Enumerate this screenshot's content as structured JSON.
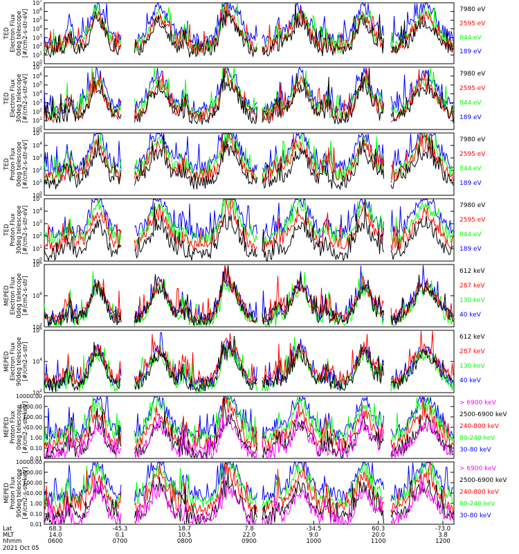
{
  "chart_data": [
    {
      "type": "line",
      "ylabel": [
        "TED",
        "Electron Flux",
        "0deg telescope",
        "[#/cm2-s-str-eV]"
      ],
      "yscale": "log",
      "ylim": [
        1,
        10000000
      ],
      "yticks": [
        "10^0",
        "10^1",
        "10^2",
        "10^3",
        "10^4",
        "10^5",
        "10^6",
        "10^7"
      ],
      "series": [
        {
          "name": "7980 eV",
          "color": "#000000",
          "level": 0.2
        },
        {
          "name": "2595 eV",
          "color": "#ff0000",
          "level": 0.25
        },
        {
          "name": "844 eV",
          "color": "#00ff00",
          "level": 0.28
        },
        {
          "name": "189 eV",
          "color": "#0000ff",
          "level": 0.38
        }
      ]
    },
    {
      "type": "line",
      "ylabel": [
        "TED",
        "Electron Flux",
        "30deg telescope",
        "[#/cm2-s-str-eV]"
      ],
      "yscale": "log",
      "ylim": [
        1,
        10000000
      ],
      "yticks": [
        "10^0",
        "10^1",
        "10^2",
        "10^3",
        "10^4",
        "10^5",
        "10^6",
        "10^7"
      ],
      "series": [
        {
          "name": "7980 eV",
          "color": "#000000",
          "level": 0.18
        },
        {
          "name": "2595 eV",
          "color": "#ff0000",
          "level": 0.22
        },
        {
          "name": "844 eV",
          "color": "#00ff00",
          "level": 0.26
        },
        {
          "name": "189 eV",
          "color": "#0000ff",
          "level": 0.33
        }
      ]
    },
    {
      "type": "line",
      "ylabel": [
        "TED",
        "Proton Flux",
        "0deg telescope",
        "[#/cm2-s-str-eV]"
      ],
      "yscale": "log",
      "ylim": [
        1,
        100000
      ],
      "yticks": [
        "10^0",
        "10^1",
        "10^2",
        "10^3",
        "10^4",
        "10^5"
      ],
      "series": [
        {
          "name": "7980 eV",
          "color": "#000000",
          "level": 0.2
        },
        {
          "name": "2595 eV",
          "color": "#ff0000",
          "level": 0.3
        },
        {
          "name": "844 eV",
          "color": "#00ff00",
          "level": 0.35
        },
        {
          "name": "189 eV",
          "color": "#0000ff",
          "level": 0.45
        }
      ]
    },
    {
      "type": "line",
      "ylabel": [
        "TED",
        "Proton Flux",
        "30deg telescope",
        "[#/cm2-s-str-eV]"
      ],
      "yscale": "log",
      "ylim": [
        1,
        100000
      ],
      "yticks": [
        "10^0",
        "10^1",
        "10^2",
        "10^3",
        "10^4",
        "10^5"
      ],
      "series": [
        {
          "name": "7980 eV",
          "color": "#000000",
          "level": 0.1
        },
        {
          "name": "2595 eV",
          "color": "#ff0000",
          "level": 0.25
        },
        {
          "name": "844 eV",
          "color": "#00ff00",
          "level": 0.35
        },
        {
          "name": "189 eV",
          "color": "#0000ff",
          "level": 0.45
        }
      ]
    },
    {
      "type": "line",
      "ylabel": [
        "MEPED",
        "Electron Flux",
        "0deg telescope",
        "[#/cm2-s-str]"
      ],
      "yscale": "log",
      "ylim": [
        10,
        10000000
      ],
      "yticks": [
        "10^2",
        "10^4",
        "10^6"
      ],
      "series": [
        {
          "name": "612 keV",
          "color": "#000000",
          "level": 0.12
        },
        {
          "name": "287 keV",
          "color": "#ff0000",
          "level": 0.15
        },
        {
          "name": "130 keV",
          "color": "#00ff00",
          "level": 0.08
        },
        {
          "name": "40 keV",
          "color": "#0000ff",
          "level": 0.14
        }
      ]
    },
    {
      "type": "line",
      "ylabel": [
        "MEPED",
        "Electron Flux",
        "90deg telescope",
        "[#/cm2-s-str]"
      ],
      "yscale": "log",
      "ylim": [
        10,
        10000000
      ],
      "yticks": [
        "10^2",
        "10^4",
        "10^6"
      ],
      "series": [
        {
          "name": "612 keV",
          "color": "#000000",
          "level": 0.12
        },
        {
          "name": "287 keV",
          "color": "#ff0000",
          "level": 0.2
        },
        {
          "name": "130 keV",
          "color": "#00ff00",
          "level": 0.1
        },
        {
          "name": "40 keV",
          "color": "#0000ff",
          "level": 0.15
        }
      ]
    },
    {
      "type": "line",
      "ylabel": [
        "MEPED",
        "Proton Flux",
        "0deg telescope",
        "[#/cm2-s-str-keV]"
      ],
      "yscale": "log",
      "ylim": [
        0.01,
        10000
      ],
      "yticks": [
        "0.01",
        "0.10",
        "1.00",
        "10.00",
        "100.00",
        "1000.00",
        "10000.00"
      ],
      "series": [
        {
          "name": "> 6900 keV",
          "color": "#ff00ff",
          "level": 0.05
        },
        {
          "name": "2500-6900 keV",
          "color": "#000000",
          "level": 0.08
        },
        {
          "name": "240-800 keV",
          "color": "#ff0000",
          "level": 0.22
        },
        {
          "name": "80-240 keV",
          "color": "#00ff00",
          "level": 0.33
        },
        {
          "name": "30-80 keV",
          "color": "#0000ff",
          "level": 0.4
        }
      ]
    },
    {
      "type": "line",
      "ylabel": [
        "MEPED",
        "Proton Flux",
        "90deg telescope",
        "[#/cm2-s-str-keV]"
      ],
      "yscale": "log",
      "ylim": [
        0.01,
        10000
      ],
      "yticks": [
        "0.01",
        "0.10",
        "1.00",
        "10.00",
        "100.00",
        "1000.00",
        "10000.00"
      ],
      "series": [
        {
          "name": "> 6900 keV",
          "color": "#ff00ff",
          "level": 0.05
        },
        {
          "name": "2500-6900 keV",
          "color": "#000000",
          "level": 0.1
        },
        {
          "name": "240-800 keV",
          "color": "#ff0000",
          "level": 0.25
        },
        {
          "name": "80-240 keV",
          "color": "#00ff00",
          "level": 0.35
        },
        {
          "name": "30-80 keV",
          "color": "#0000ff",
          "level": 0.45
        }
      ]
    }
  ],
  "xaxis": {
    "row_labels": [
      "Lat",
      "MLT",
      "hhmm"
    ],
    "ticks": [
      {
        "lat": "68.3",
        "mlt": "14.0",
        "hhmm": "0600"
      },
      {
        "lat": "-45.3",
        "mlt": "0.1",
        "hhmm": "0700"
      },
      {
        "lat": "18.7",
        "mlt": "10.5",
        "hhmm": "0800"
      },
      {
        "lat": "7.8",
        "mlt": "22.0",
        "hhmm": "0900"
      },
      {
        "lat": "-34.5",
        "mlt": "9.0",
        "hhmm": "1000"
      },
      {
        "lat": "60.3",
        "mlt": "20.0",
        "hhmm": "1100"
      },
      {
        "lat": "-73.0",
        "mlt": "3.8",
        "hhmm": "1200"
      }
    ],
    "date": "2021 Oct 05"
  },
  "events": [
    0.06,
    0.195,
    0.34,
    0.44,
    0.57,
    0.69,
    0.82
  ],
  "bursts": [
    {
      "x": 0.13,
      "w": 0.025
    },
    {
      "x": 0.28,
      "w": 0.03
    },
    {
      "x": 0.455,
      "w": 0.03
    },
    {
      "x": 0.625,
      "w": 0.03
    },
    {
      "x": 0.78,
      "w": 0.025
    },
    {
      "x": 0.93,
      "w": 0.04
    }
  ]
}
